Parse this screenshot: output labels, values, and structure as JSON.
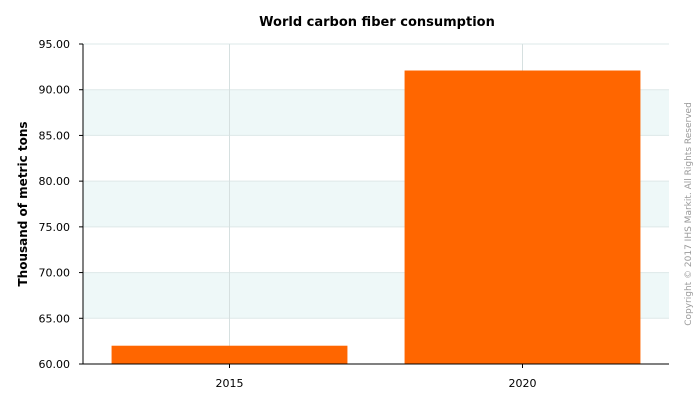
{
  "chart_data": {
    "type": "bar",
    "title": "World carbon fiber consumption",
    "xlabel": "",
    "ylabel": "Thousand of metric tons",
    "categories": [
      "2015",
      "2020"
    ],
    "values": [
      62.0,
      92.1
    ],
    "ylim": [
      60,
      95
    ],
    "yticks": [
      "60.00",
      "65.00",
      "70.00",
      "75.00",
      "80.00",
      "85.00",
      "90.00",
      "95.00"
    ],
    "grid": true,
    "bar_color": "#ff6600",
    "band_color": "#eef8f8",
    "copyright": "Copyright © 2017 IHS Markit. All Rights Reserved"
  }
}
